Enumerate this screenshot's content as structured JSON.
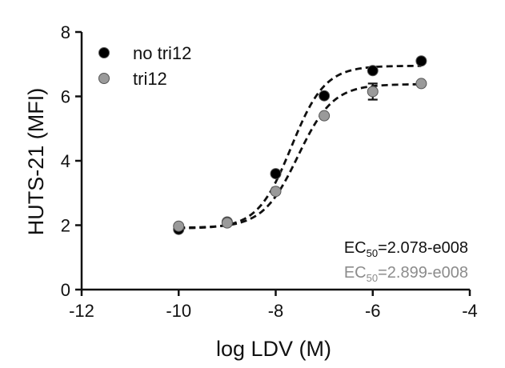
{
  "chart_data": {
    "type": "scatter",
    "xlabel": "log LDV (M)",
    "ylabel": "HUTS-21 (MFI)",
    "xlim": [
      -12,
      -4
    ],
    "ylim": [
      0,
      8
    ],
    "xticks": [
      -12,
      -10,
      -8,
      -6,
      -4
    ],
    "yticks": [
      0,
      2,
      4,
      6,
      8
    ],
    "xtick_labels": [
      "-12",
      "-10",
      "-8",
      "-6",
      "-4"
    ],
    "ytick_labels": [
      "0",
      "2",
      "4",
      "6",
      "8"
    ],
    "grid": false,
    "legend": "top-left",
    "series": [
      {
        "name": "no tri12",
        "color": "#000000",
        "x": [
          -10,
          -9,
          -8,
          -7,
          -6,
          -5
        ],
        "y": [
          1.87,
          2.1,
          3.6,
          6.02,
          6.8,
          7.1
        ],
        "fit": {
          "bottom": 1.9,
          "top": 6.95,
          "logEC50": -7.68,
          "hill": 1.25
        }
      },
      {
        "name": "tri12",
        "color": "#9a9a9a",
        "x": [
          -10,
          -9,
          -8,
          -7,
          -6,
          -5
        ],
        "y": [
          1.97,
          2.07,
          3.05,
          5.4,
          6.15,
          6.4
        ],
        "error": [
          0,
          0,
          0,
          0,
          0.25,
          0
        ],
        "fit": {
          "bottom": 1.92,
          "top": 6.38,
          "logEC50": -7.54,
          "hill": 1.2
        }
      }
    ],
    "annotations": [
      {
        "main": "EC",
        "sub": "50",
        "value": "=2.078-e008",
        "color": "#111111"
      },
      {
        "main": "EC",
        "sub": "50",
        "value": "=2.899-e008",
        "color": "#8c8c8c"
      }
    ]
  }
}
